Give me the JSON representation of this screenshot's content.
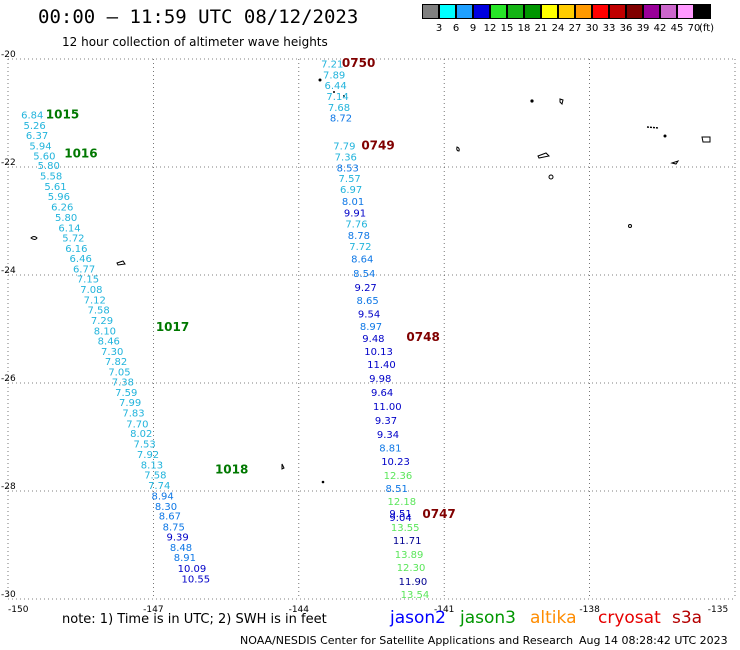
{
  "header": {
    "title": "00:00 – 11:59 UTC 08/12/2023",
    "subtitle": "12 hour collection of altimeter wave heights"
  },
  "legend": {
    "colors": [
      "#808080",
      "#00ffff",
      "#1ea0ff",
      "#0000e0",
      "#28e628",
      "#14b414",
      "#009600",
      "#ffff00",
      "#ffcc00",
      "#ff9900",
      "#ff0000",
      "#c00000",
      "#800000",
      "#990099",
      "#cc66cc",
      "#ff99ff",
      "#000000"
    ],
    "labels": [
      "3",
      "6",
      "9",
      "12",
      "15",
      "18",
      "21",
      "24",
      "27",
      "30",
      "33",
      "36",
      "39",
      "42",
      "45",
      "70"
    ],
    "unit": "(ft)"
  },
  "map": {
    "lat_ticks": [
      "-20",
      "-22",
      "-24",
      "-26",
      "-28",
      "-30"
    ],
    "lon_ticks": [
      "-150",
      "-147",
      "-144",
      "-141",
      "-138",
      "-135"
    ],
    "tracks": [
      {
        "name": "track-west",
        "time_labels": [
          {
            "text": "1015",
            "color": "#007800",
            "lon": -149.22,
            "lat": -21.1
          },
          {
            "text": "1016",
            "color": "#007800",
            "lon": -148.84,
            "lat": -21.82
          },
          {
            "text": "1017",
            "color": "#007800",
            "lon": -146.95,
            "lat": -25.04
          },
          {
            "text": "1018",
            "color": "#007800",
            "lon": -145.73,
            "lat": -27.68
          }
        ],
        "points": [
          {
            "value": "6.84",
            "color": "#22b4dc",
            "lon": -149.73,
            "lat": -21.1
          },
          {
            "value": "5.26",
            "color": "#22b4dc",
            "lon": -149.68,
            "lat": -21.3
          },
          {
            "value": "6.37",
            "color": "#22b4dc",
            "lon": -149.63,
            "lat": -21.48
          },
          {
            "value": "5.94",
            "color": "#22b4dc",
            "lon": -149.56,
            "lat": -21.68
          },
          {
            "value": "5.60",
            "color": "#22b4dc",
            "lon": -149.48,
            "lat": -21.86
          },
          {
            "value": "5.80",
            "color": "#22b4dc",
            "lon": -149.39,
            "lat": -22.04
          },
          {
            "value": "5.58",
            "color": "#22b4dc",
            "lon": -149.34,
            "lat": -22.23
          },
          {
            "value": "5.61",
            "color": "#22b4dc",
            "lon": -149.25,
            "lat": -22.43
          },
          {
            "value": "5.96",
            "color": "#22b4dc",
            "lon": -149.18,
            "lat": -22.61
          },
          {
            "value": "6.26",
            "color": "#22b4dc",
            "lon": -149.11,
            "lat": -22.81
          },
          {
            "value": "5.80",
            "color": "#22b4dc",
            "lon": -149.03,
            "lat": -23.0
          },
          {
            "value": "6.14",
            "color": "#22b4dc",
            "lon": -148.96,
            "lat": -23.19
          },
          {
            "value": "5.72",
            "color": "#22b4dc",
            "lon": -148.88,
            "lat": -23.38
          },
          {
            "value": "6.16",
            "color": "#22b4dc",
            "lon": -148.82,
            "lat": -23.57
          },
          {
            "value": "6.46",
            "color": "#22b4dc",
            "lon": -148.73,
            "lat": -23.76
          },
          {
            "value": "6.77",
            "color": "#22b4dc",
            "lon": -148.66,
            "lat": -23.95
          },
          {
            "value": "7.15",
            "color": "#22b4dc",
            "lon": -148.58,
            "lat": -24.14
          },
          {
            "value": "7.08",
            "color": "#22b4dc",
            "lon": -148.51,
            "lat": -24.33
          },
          {
            "value": "7.12",
            "color": "#22b4dc",
            "lon": -148.44,
            "lat": -24.53
          },
          {
            "value": "7.58",
            "color": "#22b4dc",
            "lon": -148.36,
            "lat": -24.71
          },
          {
            "value": "7.29",
            "color": "#22b4dc",
            "lon": -148.29,
            "lat": -24.91
          },
          {
            "value": "8.10",
            "color": "#22b4dc",
            "lon": -148.23,
            "lat": -25.1
          },
          {
            "value": "8.46",
            "color": "#22b4dc",
            "lon": -148.15,
            "lat": -25.29
          },
          {
            "value": "7.30",
            "color": "#22b4dc",
            "lon": -148.08,
            "lat": -25.48
          },
          {
            "value": "7.82",
            "color": "#22b4dc",
            "lon": -148.0,
            "lat": -25.67
          },
          {
            "value": "7.05",
            "color": "#22b4dc",
            "lon": -147.93,
            "lat": -25.86
          },
          {
            "value": "7.38",
            "color": "#22b4dc",
            "lon": -147.86,
            "lat": -26.05
          },
          {
            "value": "7.59",
            "color": "#22b4dc",
            "lon": -147.79,
            "lat": -26.24
          },
          {
            "value": "7.99",
            "color": "#22b4dc",
            "lon": -147.71,
            "lat": -26.43
          },
          {
            "value": "7.83",
            "color": "#22b4dc",
            "lon": -147.64,
            "lat": -26.62
          },
          {
            "value": "7.70",
            "color": "#22b4dc",
            "lon": -147.56,
            "lat": -26.82
          },
          {
            "value": "8.02",
            "color": "#22b4dc",
            "lon": -147.48,
            "lat": -27.0
          },
          {
            "value": "7.53",
            "color": "#22b4dc",
            "lon": -147.41,
            "lat": -27.19
          },
          {
            "value": "7.92",
            "color": "#22b4dc",
            "lon": -147.34,
            "lat": -27.39
          },
          {
            "value": "8.13",
            "color": "#22b4dc",
            "lon": -147.26,
            "lat": -27.58
          },
          {
            "value": "7.58",
            "color": "#22b4dc",
            "lon": -147.19,
            "lat": -27.77
          },
          {
            "value": "7.74",
            "color": "#22b4dc",
            "lon": -147.11,
            "lat": -27.96
          },
          {
            "value": "8.94",
            "color": "#0f78e6",
            "lon": -147.04,
            "lat": -28.16
          },
          {
            "value": "8.30",
            "color": "#0f78e6",
            "lon": -146.97,
            "lat": -28.35
          },
          {
            "value": "8.67",
            "color": "#0f78e6",
            "lon": -146.89,
            "lat": -28.53
          },
          {
            "value": "8.75",
            "color": "#0f78e6",
            "lon": -146.81,
            "lat": -28.73
          },
          {
            "value": "9.39",
            "color": "#0000c8",
            "lon": -146.73,
            "lat": -28.92
          },
          {
            "value": "8.48",
            "color": "#0f78e6",
            "lon": -146.66,
            "lat": -29.11
          },
          {
            "value": "8.91",
            "color": "#0f78e6",
            "lon": -146.58,
            "lat": -29.3
          },
          {
            "value": "10.09",
            "color": "#0000c8",
            "lon": -146.5,
            "lat": -29.5
          },
          {
            "value": "10.55",
            "color": "#0000c8",
            "lon": -146.42,
            "lat": -29.69
          }
        ]
      },
      {
        "name": "track-east",
        "time_labels": [
          {
            "text": "0750",
            "color": "#800000",
            "lon": -143.11,
            "lat": -20.15
          },
          {
            "text": "0749",
            "color": "#800000",
            "lon": -142.71,
            "lat": -21.68
          },
          {
            "text": "0748",
            "color": "#800000",
            "lon": -141.78,
            "lat": -25.22
          },
          {
            "text": "0747",
            "color": "#800000",
            "lon": -141.45,
            "lat": -28.5
          }
        ],
        "points": [
          {
            "value": "7.21",
            "color": "#22b4dc",
            "lon": -143.54,
            "lat": -20.16
          },
          {
            "value": "7.89",
            "color": "#22b4dc",
            "lon": -143.5,
            "lat": -20.36
          },
          {
            "value": "6.44",
            "color": "#22b4dc",
            "lon": -143.47,
            "lat": -20.56
          },
          {
            "value": "7.14",
            "color": "#22b4dc",
            "lon": -143.43,
            "lat": -20.76
          },
          {
            "value": "7.68",
            "color": "#22b4dc",
            "lon": -143.4,
            "lat": -20.96
          },
          {
            "value": "8.72",
            "color": "#0f78e6",
            "lon": -143.36,
            "lat": -21.16
          },
          {
            "value": "7.79",
            "color": "#22b4dc",
            "lon": -143.29,
            "lat": -21.68
          },
          {
            "value": "7.36",
            "color": "#22b4dc",
            "lon": -143.26,
            "lat": -21.88
          },
          {
            "value": "8.53",
            "color": "#0f78e6",
            "lon": -143.22,
            "lat": -22.08
          },
          {
            "value": "7.57",
            "color": "#22b4dc",
            "lon": -143.18,
            "lat": -22.28
          },
          {
            "value": "6.97",
            "color": "#22b4dc",
            "lon": -143.15,
            "lat": -22.48
          },
          {
            "value": "8.01",
            "color": "#0f78e6",
            "lon": -143.11,
            "lat": -22.7
          },
          {
            "value": "9.91",
            "color": "#0000c8",
            "lon": -143.07,
            "lat": -22.92
          },
          {
            "value": "7.76",
            "color": "#22b4dc",
            "lon": -143.04,
            "lat": -23.12
          },
          {
            "value": "8.78",
            "color": "#0f78e6",
            "lon": -142.99,
            "lat": -23.33
          },
          {
            "value": "7.72",
            "color": "#22b4dc",
            "lon": -142.96,
            "lat": -23.54
          },
          {
            "value": "8.64",
            "color": "#0f78e6",
            "lon": -142.92,
            "lat": -23.77
          },
          {
            "value": "8.54",
            "color": "#0f78e6",
            "lon": -142.88,
            "lat": -24.04
          },
          {
            "value": "9.27",
            "color": "#0000c8",
            "lon": -142.85,
            "lat": -24.3
          },
          {
            "value": "8.65",
            "color": "#0f78e6",
            "lon": -142.81,
            "lat": -24.54
          },
          {
            "value": "9.54",
            "color": "#0000c8",
            "lon": -142.78,
            "lat": -24.79
          },
          {
            "value": "8.97",
            "color": "#0f78e6",
            "lon": -142.74,
            "lat": -25.02
          },
          {
            "value": "9.48",
            "color": "#0000c8",
            "lon": -142.69,
            "lat": -25.24
          },
          {
            "value": "10.13",
            "color": "#0000c8",
            "lon": -142.65,
            "lat": -25.48
          },
          {
            "value": "11.40",
            "color": "#0000c8",
            "lon": -142.59,
            "lat": -25.72
          },
          {
            "value": "9.98",
            "color": "#0000c8",
            "lon": -142.55,
            "lat": -25.98
          },
          {
            "value": "9.64",
            "color": "#0000c8",
            "lon": -142.51,
            "lat": -26.24
          },
          {
            "value": "11.00",
            "color": "#0000c8",
            "lon": -142.47,
            "lat": -26.5
          },
          {
            "value": "9.37",
            "color": "#0000c8",
            "lon": -142.43,
            "lat": -26.76
          },
          {
            "value": "9.34",
            "color": "#0000c8",
            "lon": -142.39,
            "lat": -27.02
          },
          {
            "value": "8.81",
            "color": "#0f78e6",
            "lon": -142.34,
            "lat": -27.27
          },
          {
            "value": "10.23",
            "color": "#0000c8",
            "lon": -142.3,
            "lat": -27.52
          },
          {
            "value": "12.36",
            "color": "#5ae65a",
            "lon": -142.25,
            "lat": -27.78
          },
          {
            "value": "8.51",
            "color": "#0f78e6",
            "lon": -142.21,
            "lat": -28.02
          },
          {
            "value": "12.18",
            "color": "#5ae65a",
            "lon": -142.17,
            "lat": -28.26
          },
          {
            "value": "9.51",
            "color": "#0000c8",
            "lon": -142.13,
            "lat": -28.48
          },
          {
            "value": "9.04",
            "color": "#0000c8",
            "lon": -142.13,
            "lat": -28.56
          },
          {
            "value": "13.55",
            "color": "#5ae65a",
            "lon": -142.1,
            "lat": -28.74
          },
          {
            "value": "11.71",
            "color": "#000090",
            "lon": -142.06,
            "lat": -28.98
          },
          {
            "value": "13.89",
            "color": "#5ae65a",
            "lon": -142.02,
            "lat": -29.24
          },
          {
            "value": "12.30",
            "color": "#5ae65a",
            "lon": -141.98,
            "lat": -29.48
          },
          {
            "value": "11.90",
            "color": "#000090",
            "lon": -141.94,
            "lat": -29.74
          },
          {
            "value": "13.54",
            "color": "#5ae65a",
            "lon": -141.9,
            "lat": -29.98
          }
        ]
      }
    ]
  },
  "note": "note:  1) Time is in UTC;  2) SWH is in feet",
  "satellites": [
    {
      "name": "jason2",
      "color": "#0000ff"
    },
    {
      "name": "jason3",
      "color": "#009600"
    },
    {
      "name": "altika",
      "color": "#ff8c00"
    },
    {
      "name": "cryosat",
      "color": "#e60000"
    },
    {
      "name": "s3a",
      "color": "#b40000"
    }
  ],
  "footer": {
    "credit": "NOAA/NESDIS Center for Satellite Applications and Research",
    "timestamp": "Aug 14 08:28:42 UTC 2023"
  }
}
